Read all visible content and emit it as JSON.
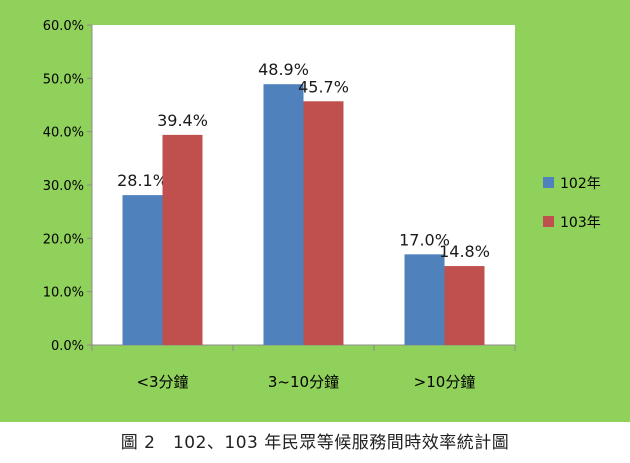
{
  "caption": "圖 2　102、103 年民眾等候服務間時效率統計圖",
  "colors": {
    "background": "#8fd15a",
    "plot": "#ffffff",
    "series_102": "#4f81bd",
    "series_103": "#c0504d",
    "axis": "#8c8c8c"
  },
  "chart_data": {
    "type": "bar",
    "title": "",
    "xlabel": "",
    "ylabel": "",
    "categories": [
      "<3分鐘",
      "3~10分鐘",
      ">10分鐘"
    ],
    "series": [
      {
        "name": "102年",
        "values": [
          28.1,
          48.9,
          17.0
        ],
        "labels": [
          "28.1%",
          "48.9%",
          "17.0%"
        ]
      },
      {
        "name": "103年",
        "values": [
          39.4,
          45.7,
          14.8
        ],
        "labels": [
          "39.4%",
          "45.7%",
          "14.8%"
        ]
      }
    ],
    "yticks": [
      "0.0%",
      "10.0%",
      "20.0%",
      "30.0%",
      "40.0%",
      "50.0%",
      "60.0%"
    ],
    "ylim": [
      0,
      60
    ],
    "grid": false,
    "legend": "right"
  }
}
